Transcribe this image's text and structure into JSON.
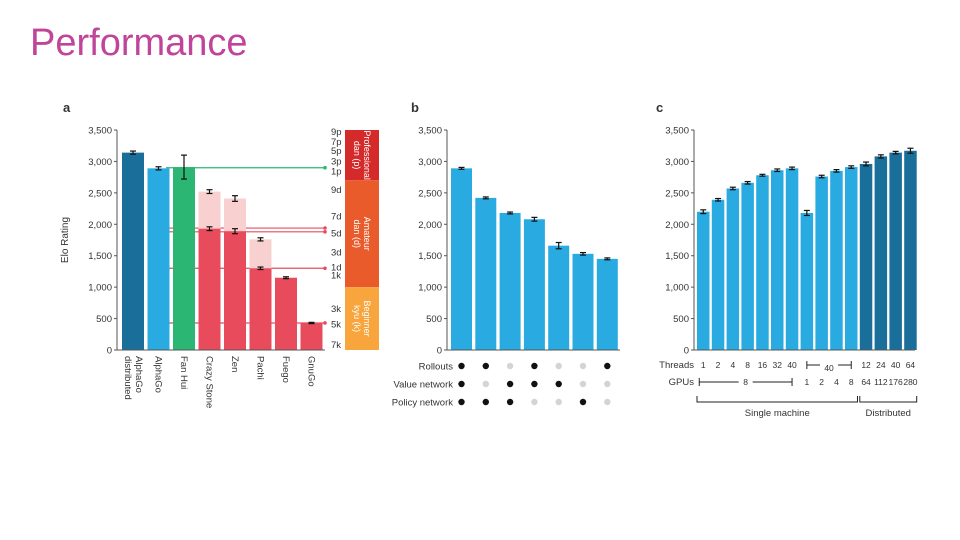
{
  "slide": {
    "title": "Performance"
  },
  "colors": {
    "dark_blue": "#1a6f9a",
    "light_blue": "#29abe2",
    "green": "#2bb673",
    "red": "#e84c5c",
    "pale_red": "#f7d0cf",
    "rank_pro": "#d42a2a",
    "rank_amateur": "#ea5b2b",
    "rank_beginner": "#f8a53e",
    "line_green": "#2bb673",
    "line_red": "#e84c5c"
  },
  "chart_data": [
    {
      "panel": "a",
      "type": "bar",
      "ylabel": "Elo Rating",
      "ylim": [
        0,
        3500
      ],
      "yticks": [
        "0",
        "500",
        "1,000",
        "1,500",
        "2,000",
        "2,500",
        "3,000",
        "3,500"
      ],
      "ytick_values": [
        0,
        500,
        1000,
        1500,
        2000,
        2500,
        3000,
        3500
      ],
      "categories": [
        "AlphaGo distributed",
        "AlphaGo",
        "Fan Hui",
        "Crazy Stone",
        "Zen",
        "Pachi",
        "Fuego",
        "GnuGo"
      ],
      "labels": [
        "AlphaGo\ndistributed",
        "AlphaGo",
        "Fan Hui",
        "Crazy Stone",
        "Zen",
        "Pachi",
        "Fuego",
        "GnuGo"
      ],
      "values": [
        3140,
        2890,
        2910,
        1930,
        1890,
        1300,
        1150,
        430
      ],
      "errors": [
        25,
        25,
        190,
        30,
        40,
        20,
        15,
        10
      ],
      "color_keys": [
        "dark_blue",
        "light_blue",
        "green",
        "red",
        "red",
        "red",
        "red",
        "red"
      ],
      "handicap_values": [
        null,
        null,
        null,
        2520,
        2410,
        1760,
        null,
        null
      ],
      "handicap_errors": [
        null,
        null,
        null,
        30,
        45,
        25,
        null,
        null
      ],
      "rank_ticks": [
        "9p",
        "7p",
        "5p",
        "3p",
        "1p",
        "9d",
        "7d",
        "5d",
        "3d",
        "1d",
        "1k",
        "3k",
        "5k",
        "7k"
      ],
      "rank_tick_values": [
        3480,
        3320,
        3170,
        3010,
        2850,
        2550,
        2130,
        1860,
        1560,
        1320,
        1190,
        660,
        410,
        90
      ],
      "rank_bands": [
        {
          "label": "Professional\ndan (p)",
          "from": 2700,
          "to": 3500,
          "color_key": "rank_pro"
        },
        {
          "label": "Amateur\ndan (d)",
          "from": 1000,
          "to": 2700,
          "color_key": "rank_amateur"
        },
        {
          "label": "Beginner\nkyu (k)",
          "from": 0,
          "to": 1000,
          "color_key": "rank_beginner"
        }
      ],
      "reference_lines": [
        {
          "value": 2900,
          "color_key": "line_green"
        },
        {
          "value": 1940,
          "color_key": "line_red"
        },
        {
          "value": 1880,
          "color_key": "line_red"
        },
        {
          "value": 1300,
          "color_key": "line_red"
        },
        {
          "value": 430,
          "color_key": "line_red"
        }
      ]
    },
    {
      "panel": "b",
      "type": "bar",
      "ylim": [
        0,
        3500
      ],
      "yticks": [
        "0",
        "500",
        "1,000",
        "1,500",
        "2,000",
        "2,500",
        "3,000",
        "3,500"
      ],
      "ytick_values": [
        0,
        500,
        1000,
        1500,
        2000,
        2500,
        3000,
        3500
      ],
      "values": [
        2890,
        2420,
        2180,
        2080,
        1660,
        1530,
        1450
      ],
      "errors": [
        15,
        15,
        15,
        30,
        50,
        20,
        15
      ],
      "color_key": "light_blue",
      "matrix_rows": [
        {
          "label": "Rollouts",
          "on": [
            true,
            true,
            false,
            true,
            false,
            false,
            true
          ]
        },
        {
          "label": "Value network",
          "on": [
            true,
            false,
            true,
            true,
            true,
            false,
            false
          ]
        },
        {
          "label": "Policy network",
          "on": [
            true,
            true,
            true,
            false,
            false,
            true,
            false
          ]
        }
      ]
    },
    {
      "panel": "c",
      "type": "bar",
      "ylim": [
        0,
        3500
      ],
      "yticks": [
        "0",
        "500",
        "1,000",
        "1,500",
        "2,000",
        "2,500",
        "3,000",
        "3,500"
      ],
      "ytick_values": [
        0,
        500,
        1000,
        1500,
        2000,
        2500,
        3000,
        3500
      ],
      "values": [
        2200,
        2390,
        2570,
        2660,
        2780,
        2860,
        2890,
        2180,
        2760,
        2850,
        2910,
        2960,
        3080,
        3140,
        3170
      ],
      "errors": [
        30,
        20,
        20,
        20,
        15,
        20,
        20,
        40,
        20,
        20,
        20,
        30,
        25,
        20,
        40
      ],
      "color_keys": [
        "light_blue",
        "light_blue",
        "light_blue",
        "light_blue",
        "light_blue",
        "light_blue",
        "light_blue",
        "light_blue",
        "light_blue",
        "light_blue",
        "light_blue",
        "dark_blue",
        "dark_blue",
        "dark_blue",
        "dark_blue"
      ],
      "threads_label": "Threads",
      "gpus_label": "GPUs",
      "threads": [
        "1",
        "2",
        "4",
        "8",
        "16",
        "32",
        "40",
        "",
        "40",
        "",
        "",
        "12",
        "24",
        "40",
        "64"
      ],
      "threads_span": "40",
      "gpus_span": "8",
      "gpus": [
        "",
        "",
        "",
        "",
        "",
        "",
        "",
        "1",
        "2",
        "4",
        "8",
        "64",
        "112",
        "176",
        "280"
      ],
      "group_single": "Single machine",
      "group_distributed": "Distributed"
    }
  ]
}
